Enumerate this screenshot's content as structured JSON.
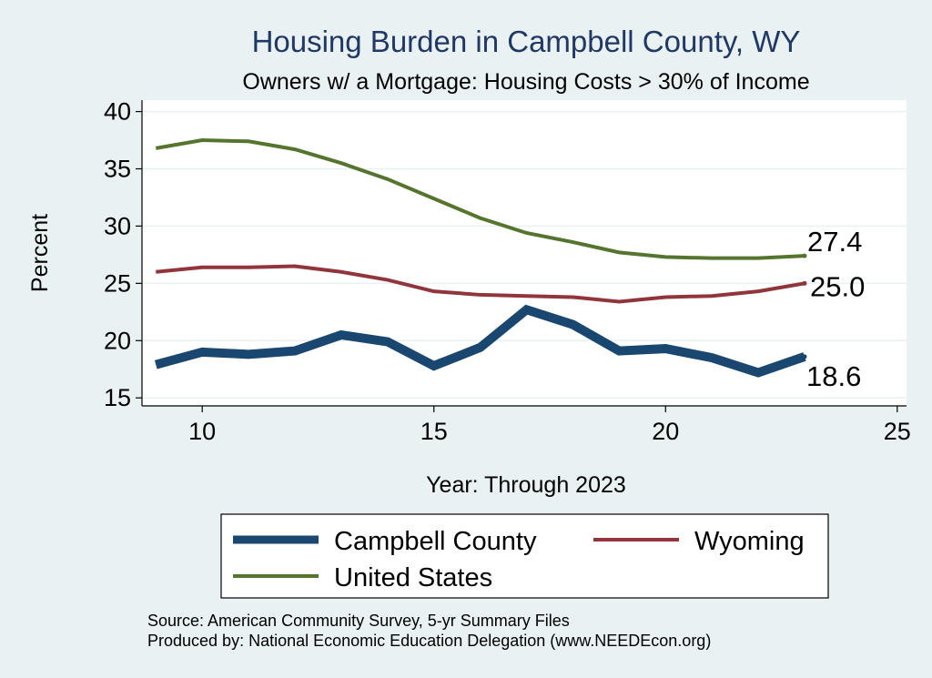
{
  "chart_data": {
    "type": "line",
    "title": "Housing Burden in Campbell County, WY",
    "subtitle": "Owners w/ a Mortgage: Housing Costs > 30% of Income",
    "xlabel": "Year: Through 2023",
    "ylabel": "Percent",
    "xlim": [
      8.7,
      25.2
    ],
    "ylim": [
      14.3,
      41
    ],
    "xticks": [
      10,
      15,
      20,
      25
    ],
    "yticks": [
      15,
      20,
      25,
      30,
      35,
      40
    ],
    "grid": true,
    "legend_position": "bottom",
    "x": [
      9,
      10,
      11,
      12,
      13,
      14,
      15,
      16,
      17,
      18,
      19,
      20,
      21,
      22,
      23
    ],
    "series": [
      {
        "name": "Campbell County",
        "color": "#1a476f",
        "values": [
          17.9,
          19.0,
          18.8,
          19.1,
          20.5,
          19.9,
          17.8,
          19.4,
          22.7,
          21.4,
          19.1,
          19.3,
          18.5,
          17.2,
          18.6
        ],
        "end_label": "18.6"
      },
      {
        "name": "Wyoming",
        "color": "#90353b",
        "values": [
          26.0,
          26.4,
          26.4,
          26.5,
          26.0,
          25.3,
          24.3,
          24.0,
          23.9,
          23.8,
          23.4,
          23.8,
          23.9,
          24.3,
          25.0
        ],
        "end_label": "25.0"
      },
      {
        "name": "United States",
        "color": "#55752f",
        "values": [
          36.8,
          37.5,
          37.4,
          36.7,
          35.5,
          34.1,
          32.4,
          30.7,
          29.4,
          28.6,
          27.7,
          27.3,
          27.2,
          27.2,
          27.4
        ],
        "end_label": "27.4"
      }
    ]
  },
  "notes": {
    "source": "Source: American Community Survey, 5-yr Summary Files",
    "produced": "Produced by: National Economic Education Delegation (www.NEEDEcon.org)"
  }
}
